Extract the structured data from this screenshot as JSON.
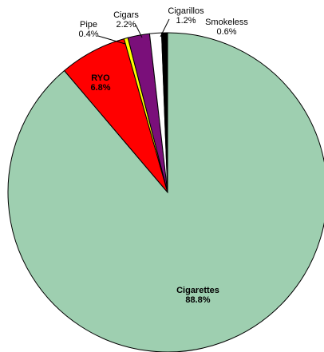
{
  "chart_data": {
    "type": "pie",
    "title": "",
    "slices": [
      {
        "name": "Cigarettes",
        "value": 88.8,
        "label": "88.8%",
        "color": "#9ecfb0",
        "label_inside": true
      },
      {
        "name": "RYO",
        "value": 6.8,
        "label": "6.8%",
        "color": "#ff0000",
        "label_inside": true
      },
      {
        "name": "Pipe",
        "value": 0.4,
        "label": "0.4%",
        "color": "#ffff00",
        "label_inside": false
      },
      {
        "name": "Cigars",
        "value": 2.2,
        "label": "2.2%",
        "color": "#7a0f7a",
        "label_inside": false
      },
      {
        "name": "Cigarillos",
        "value": 1.2,
        "label": "1.2%",
        "color": "#ffffff",
        "label_inside": false
      },
      {
        "name": "Smokeless",
        "value": 0.6,
        "label": "0.6%",
        "color": "#000000",
        "label_inside": false
      }
    ],
    "start_angle": "12 o'clock",
    "direction": "clockwise"
  }
}
